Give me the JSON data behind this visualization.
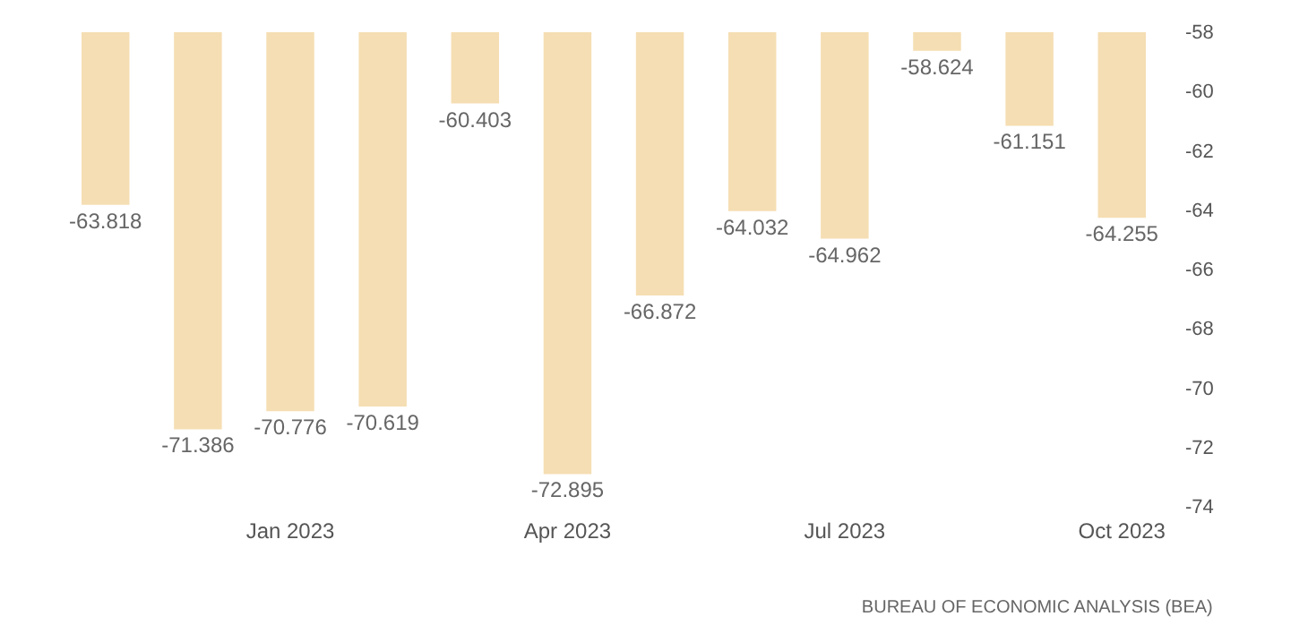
{
  "chart_data": {
    "type": "bar",
    "categories": [
      null,
      null,
      "Jan 2023",
      null,
      null,
      "Apr 2023",
      null,
      null,
      "Jul 2023",
      null,
      null,
      "Oct 2023"
    ],
    "values": [
      -63.818,
      -71.386,
      -70.776,
      -70.619,
      -60.403,
      -72.895,
      -66.872,
      -64.032,
      -64.962,
      -58.624,
      -61.151,
      -64.255
    ],
    "color": "#f5deb3",
    "ylim": [
      -74,
      -58
    ],
    "yticks": [
      -74,
      -72,
      -70,
      -68,
      -66,
      -64,
      -62,
      -60,
      -58
    ],
    "data_labels": true,
    "annotations": [
      "BUREAU OF ECONOMIC ANALYSIS (BEA)"
    ]
  }
}
